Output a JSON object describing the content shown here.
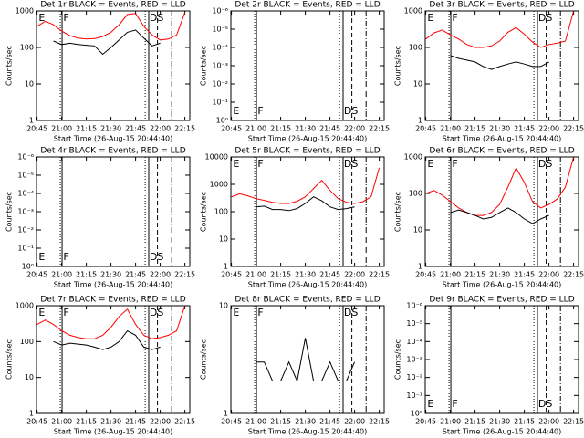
{
  "markers": [
    {
      "x": "20:59:10",
      "style": "dotted"
    },
    {
      "x": "21:00:15",
      "style": "solid"
    },
    {
      "x": "21:50:50",
      "style": "dotted"
    },
    {
      "x": "21:53:00",
      "style": "solid"
    },
    {
      "x": "21:58:20",
      "style": "dashed"
    },
    {
      "x": "22:07:00",
      "style": "dashdot"
    }
  ],
  "annotations": [
    {
      "text": "E",
      "x": "20:46:00"
    },
    {
      "text": "F",
      "x": "21:01:00"
    },
    {
      "text": "DS",
      "x": "21:53:30"
    }
  ],
  "chart_data": [
    {
      "type": "line",
      "title": "Det 1r BLACK = Events, RED = LLD",
      "xlabel": "Start Time (26-Aug-15 20:44:40)",
      "ylabel": "Counts/sec",
      "xlim": [
        "20:44:40",
        "22:18:00"
      ],
      "xticks": [
        "20:45",
        "21:00",
        "21:15",
        "21:30",
        "21:45",
        "22:00",
        "22:15"
      ],
      "ylog": true,
      "ylim": [
        1,
        1000
      ],
      "yticks": [
        1,
        10,
        100,
        1000
      ],
      "annotation_position": "top",
      "x": [
        "20:45",
        "20:50",
        "20:55",
        "21:00",
        "21:05",
        "21:10",
        "21:15",
        "21:20",
        "21:25",
        "21:30",
        "21:35",
        "21:40",
        "21:45",
        "21:50",
        "21:55",
        "22:00",
        "22:05",
        "22:10",
        "22:15"
      ],
      "series": [
        {
          "name": "LLD",
          "color": "#ff0000",
          "values": [
            380,
            520,
            420,
            280,
            210,
            180,
            170,
            175,
            200,
            260,
            420,
            800,
            850,
            380,
            220,
            160,
            170,
            220,
            900
          ]
        },
        {
          "name": "Events",
          "color": "#000000",
          "values": [
            null,
            null,
            150,
            120,
            130,
            120,
            115,
            110,
            65,
            100,
            160,
            260,
            300,
            180,
            110,
            130,
            null,
            null,
            null
          ]
        }
      ]
    },
    {
      "type": "line",
      "title": "Det 2r BLACK = Events, RED = LLD",
      "xlabel": "Start Time (26-Aug-15 20:44:40)",
      "ylabel": "Counts/sec",
      "xlim": [
        "20:44:40",
        "22:18:00"
      ],
      "xticks": [
        "20:45",
        "21:00",
        "21:15",
        "21:30",
        "21:45",
        "22:00",
        "22:15"
      ],
      "ylog": true,
      "ylim": [
        1,
        1e-06
      ],
      "yticks": [
        {
          "value": 1,
          "label": "10⁰"
        },
        {
          "value": 0.1,
          "label": "10⁻¹"
        },
        {
          "value": 0.01,
          "label": "10⁻²"
        },
        {
          "value": 0.001,
          "label": "10⁻³"
        },
        {
          "value": 0.0001,
          "label": "10⁻⁴"
        },
        {
          "value": 1e-05,
          "label": "10⁻⁵"
        },
        {
          "value": 1e-06,
          "label": "10⁻⁶"
        }
      ],
      "annotation_position": "bottom",
      "series": []
    },
    {
      "type": "line",
      "title": "Det 3r BLACK = Events, RED = LLD",
      "xlabel": "Start Time (26-Aug-15 20:44:40)",
      "ylabel": "Counts/sec",
      "xlim": [
        "20:44:40",
        "22:18:00"
      ],
      "xticks": [
        "20:45",
        "21:00",
        "21:15",
        "21:30",
        "21:45",
        "22:00",
        "22:15"
      ],
      "ylog": true,
      "ylim": [
        1,
        1000
      ],
      "yticks": [
        1,
        10,
        100,
        1000
      ],
      "annotation_position": "top",
      "x": [
        "20:45",
        "20:50",
        "20:55",
        "21:00",
        "21:05",
        "21:10",
        "21:15",
        "21:20",
        "21:25",
        "21:30",
        "21:35",
        "21:40",
        "21:45",
        "21:50",
        "21:55",
        "22:00",
        "22:05",
        "22:10",
        "22:15"
      ],
      "series": [
        {
          "name": "LLD",
          "color": "#ff0000",
          "values": [
            170,
            250,
            300,
            220,
            170,
            120,
            100,
            100,
            110,
            150,
            260,
            350,
            230,
            140,
            100,
            120,
            130,
            150,
            1000
          ]
        },
        {
          "name": "Events",
          "color": "#000000",
          "values": [
            null,
            null,
            null,
            60,
            50,
            45,
            40,
            30,
            25,
            30,
            35,
            40,
            35,
            30,
            30,
            40,
            null,
            null,
            null
          ]
        }
      ]
    },
    {
      "type": "line",
      "title": "Det 4r BLACK = Events, RED = LLD",
      "xlabel": "Start Time (26-Aug-15 20:44:40)",
      "ylabel": "Counts/sec",
      "xlim": [
        "20:44:40",
        "22:18:00"
      ],
      "xticks": [
        "20:45",
        "21:00",
        "21:15",
        "21:30",
        "21:45",
        "22:00",
        "22:15"
      ],
      "ylog": true,
      "ylim": [
        1,
        1e-06
      ],
      "yticks": [
        {
          "value": 1,
          "label": "10⁰"
        },
        {
          "value": 0.1,
          "label": "10⁻¹"
        },
        {
          "value": 0.01,
          "label": "10⁻²"
        },
        {
          "value": 0.001,
          "label": "10⁻³"
        },
        {
          "value": 0.0001,
          "label": "10⁻⁴"
        },
        {
          "value": 1e-05,
          "label": "10⁻⁵"
        },
        {
          "value": 1e-06,
          "label": "10⁻⁶"
        }
      ],
      "annotation_position": "bottom",
      "series": []
    },
    {
      "type": "line",
      "title": "Det 5r BLACK = Events, RED = LLD",
      "xlabel": "Start Time (26-Aug-15 20:44:40)",
      "ylabel": "Counts/sec",
      "xlim": [
        "20:44:40",
        "22:18:00"
      ],
      "xticks": [
        "20:45",
        "21:00",
        "21:15",
        "21:30",
        "21:45",
        "22:00",
        "22:15"
      ],
      "ylog": true,
      "ylim": [
        1,
        10000
      ],
      "yticks": [
        1,
        10,
        100,
        1000,
        10000
      ],
      "annotation_position": "top",
      "x": [
        "20:45",
        "20:50",
        "20:55",
        "21:00",
        "21:05",
        "21:10",
        "21:15",
        "21:20",
        "21:25",
        "21:30",
        "21:35",
        "21:40",
        "21:45",
        "21:50",
        "21:55",
        "22:00",
        "22:05",
        "22:10",
        "22:15"
      ],
      "series": [
        {
          "name": "LLD",
          "color": "#ff0000",
          "values": [
            350,
            450,
            380,
            300,
            260,
            220,
            200,
            200,
            240,
            350,
            700,
            1400,
            600,
            300,
            220,
            200,
            230,
            350,
            4000
          ]
        },
        {
          "name": "Events",
          "color": "#000000",
          "values": [
            null,
            null,
            null,
            150,
            160,
            120,
            120,
            110,
            130,
            200,
            350,
            250,
            150,
            120,
            130,
            150,
            null,
            null,
            null
          ]
        }
      ]
    },
    {
      "type": "line",
      "title": "Det 6r BLACK = Events, RED = LLD",
      "xlabel": "Start Time (26-Aug-15 20:44:40)",
      "ylabel": "Counts/sec",
      "xlim": [
        "20:44:40",
        "22:18:00"
      ],
      "xticks": [
        "20:45",
        "21:00",
        "21:15",
        "21:30",
        "21:45",
        "22:00",
        "22:15"
      ],
      "ylog": true,
      "ylim": [
        1,
        1000
      ],
      "yticks": [
        1,
        10,
        100,
        1000
      ],
      "annotation_position": "top",
      "x": [
        "20:45",
        "20:50",
        "20:55",
        "21:00",
        "21:05",
        "21:10",
        "21:15",
        "21:20",
        "21:25",
        "21:30",
        "21:35",
        "21:40",
        "21:45",
        "21:50",
        "21:55",
        "22:00",
        "22:05",
        "22:10",
        "22:15"
      ],
      "series": [
        {
          "name": "LLD",
          "color": "#ff0000",
          "values": [
            100,
            120,
            90,
            60,
            40,
            30,
            25,
            25,
            30,
            50,
            150,
            500,
            200,
            60,
            40,
            50,
            70,
            150,
            1000
          ]
        },
        {
          "name": "Events",
          "color": "#000000",
          "values": [
            null,
            null,
            null,
            30,
            35,
            30,
            25,
            20,
            22,
            30,
            40,
            30,
            20,
            15,
            20,
            25,
            null,
            null,
            null
          ]
        }
      ]
    },
    {
      "type": "line",
      "title": "Det 7r BLACK = Events, RED = LLD",
      "xlabel": "Start Time (26-Aug-15 20:44:40)",
      "ylabel": "Counts/sec",
      "xlim": [
        "20:44:40",
        "22:18:00"
      ],
      "xticks": [
        "20:45",
        "21:00",
        "21:15",
        "21:30",
        "21:45",
        "22:00",
        "22:15"
      ],
      "ylog": true,
      "ylim": [
        1,
        1000
      ],
      "yticks": [
        1,
        10,
        100,
        1000
      ],
      "annotation_position": "top",
      "x": [
        "20:45",
        "20:50",
        "20:55",
        "21:00",
        "21:05",
        "21:10",
        "21:15",
        "21:20",
        "21:25",
        "21:30",
        "21:35",
        "21:40",
        "21:45",
        "21:50",
        "21:55",
        "22:00",
        "22:05",
        "22:10",
        "22:15"
      ],
      "series": [
        {
          "name": "LLD",
          "color": "#ff0000",
          "values": [
            300,
            400,
            300,
            200,
            150,
            130,
            120,
            120,
            150,
            250,
            500,
            800,
            300,
            150,
            120,
            130,
            150,
            200,
            1000
          ]
        },
        {
          "name": "Events",
          "color": "#000000",
          "values": [
            null,
            null,
            100,
            80,
            90,
            85,
            80,
            70,
            60,
            70,
            100,
            200,
            150,
            70,
            60,
            70,
            null,
            null,
            null
          ]
        }
      ]
    },
    {
      "type": "line",
      "title": "Det 8r BLACK = Events, RED = LLD",
      "xlabel": "Start Time (26-Aug-15 20:44:40)",
      "ylabel": "Counts/sec",
      "xlim": [
        "20:44:40",
        "22:18:00"
      ],
      "xticks": [
        "20:45",
        "21:00",
        "21:15",
        "21:30",
        "21:45",
        "22:00",
        "22:15"
      ],
      "ylog": true,
      "ylim": [
        1,
        10
      ],
      "yticks": [
        1,
        10
      ],
      "annotation_position": "top",
      "x": [
        "20:45",
        "20:50",
        "20:55",
        "21:00",
        "21:05",
        "21:10",
        "21:15",
        "21:20",
        "21:25",
        "21:30",
        "21:35",
        "21:40",
        "21:45",
        "21:50",
        "21:55",
        "22:00",
        "22:05",
        "22:10",
        "22:15"
      ],
      "series": [
        {
          "name": "Events",
          "color": "#000000",
          "values": [
            null,
            null,
            null,
            3,
            3,
            2,
            2,
            3,
            2,
            5,
            2,
            2,
            3,
            2,
            2,
            3,
            null,
            null,
            null
          ]
        }
      ]
    },
    {
      "type": "line",
      "title": "Det 9r BLACK = Events, RED = LLD",
      "xlabel": "Start Time (26-Aug-15 20:44:40)",
      "ylabel": "Counts/sec",
      "xlim": [
        "20:44:40",
        "22:18:00"
      ],
      "xticks": [
        "20:45",
        "21:00",
        "21:15",
        "21:30",
        "21:45",
        "22:00",
        "22:15"
      ],
      "ylog": true,
      "ylim": [
        1,
        1e-06
      ],
      "yticks": [
        {
          "value": 1,
          "label": "10⁰"
        },
        {
          "value": 0.1,
          "label": "10⁻¹"
        },
        {
          "value": 0.01,
          "label": "10⁻²"
        },
        {
          "value": 0.001,
          "label": "10⁻³"
        },
        {
          "value": 0.0001,
          "label": "10⁻⁴"
        },
        {
          "value": 1e-05,
          "label": "10⁻⁵"
        },
        {
          "value": 1e-06,
          "label": "10⁻⁶"
        }
      ],
      "annotation_position": "bottom",
      "series": []
    }
  ]
}
